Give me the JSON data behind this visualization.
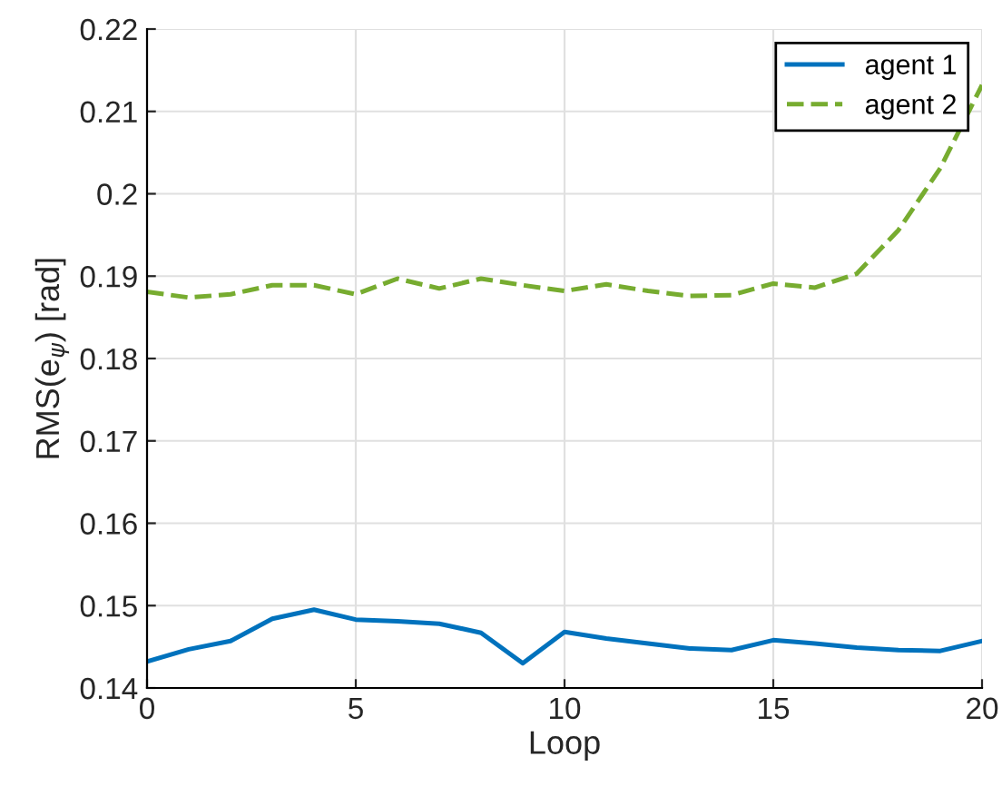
{
  "chart_data": {
    "type": "line",
    "xlabel": "Loop",
    "ylabel": "RMS(e$_{ψ}$) [rad]",
    "x": [
      0,
      1,
      2,
      3,
      4,
      5,
      6,
      7,
      8,
      9,
      10,
      11,
      12,
      13,
      14,
      15,
      16,
      17,
      18,
      19,
      20
    ],
    "series": [
      {
        "name": "agent 1",
        "color": "#0072bd",
        "line_style": "solid",
        "values": [
          0.1432,
          0.1447,
          0.1457,
          0.1484,
          0.1495,
          0.1483,
          0.1481,
          0.1478,
          0.1467,
          0.143,
          0.1468,
          0.146,
          0.1454,
          0.1448,
          0.1446,
          0.1458,
          0.1454,
          0.1449,
          0.1446,
          0.1445,
          0.1457
        ]
      },
      {
        "name": "agent 2",
        "color": "#77ac30",
        "line_style": "dashed",
        "values": [
          0.1881,
          0.1874,
          0.1878,
          0.1889,
          0.1889,
          0.1878,
          0.1897,
          0.1885,
          0.1897,
          0.1889,
          0.1882,
          0.189,
          0.1882,
          0.1876,
          0.1877,
          0.1891,
          0.1886,
          0.1903,
          0.1956,
          0.2031,
          0.2132
        ]
      }
    ],
    "xlim": [
      0,
      20
    ],
    "xticks": [
      0,
      5,
      10,
      15,
      20
    ],
    "ylim": [
      0.14,
      0.22
    ],
    "yticks": [
      0.14,
      0.15,
      0.16,
      0.17,
      0.18,
      0.19,
      0.2,
      0.21,
      0.22
    ],
    "grid": true,
    "legend": "top right"
  }
}
